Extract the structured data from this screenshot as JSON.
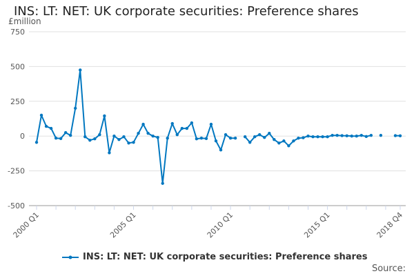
{
  "chart_data": {
    "type": "line",
    "title": "INS: LT: NET: UK corporate securities: Preference shares",
    "ylabel": "£million",
    "xlabel": "",
    "ylim": [
      -500,
      750
    ],
    "yticks": [
      750,
      500,
      250,
      0,
      -250,
      -500
    ],
    "ytick_labels": [
      "750",
      "500",
      "250",
      "0",
      "-250",
      "-500"
    ],
    "x_start": "2000 Q1",
    "x_tick_labels": [
      {
        "label": "2000 Q1",
        "index": 0
      },
      {
        "label": "2005 Q1",
        "index": 20
      },
      {
        "label": "2010 Q1",
        "index": 40
      },
      {
        "label": "2015 Q1",
        "index": 60
      },
      {
        "label": "2018 Q4",
        "index": 75
      }
    ],
    "grid": true,
    "legend_position": "bottom",
    "series": [
      {
        "name": "INS: LT: NET: UK corporate securities: Preference shares",
        "color": "#0077c0",
        "values": [
          -45,
          150,
          70,
          55,
          -15,
          -18,
          25,
          5,
          200,
          475,
          -5,
          -30,
          -20,
          10,
          145,
          -120,
          0,
          -25,
          -5,
          -50,
          -45,
          20,
          85,
          20,
          0,
          -10,
          -340,
          -15,
          90,
          10,
          55,
          55,
          95,
          -20,
          -15,
          -18,
          85,
          -35,
          -100,
          10,
          -15,
          -15,
          null,
          -5,
          -45,
          -5,
          10,
          -10,
          20,
          -25,
          -50,
          -35,
          -70,
          -35,
          -15,
          -12,
          0,
          -5,
          -5,
          -5,
          -5,
          5,
          5,
          3,
          2,
          0,
          0,
          5,
          -3,
          5,
          null,
          5,
          null,
          null,
          3,
          2
        ]
      }
    ]
  },
  "source_label": "Source:"
}
